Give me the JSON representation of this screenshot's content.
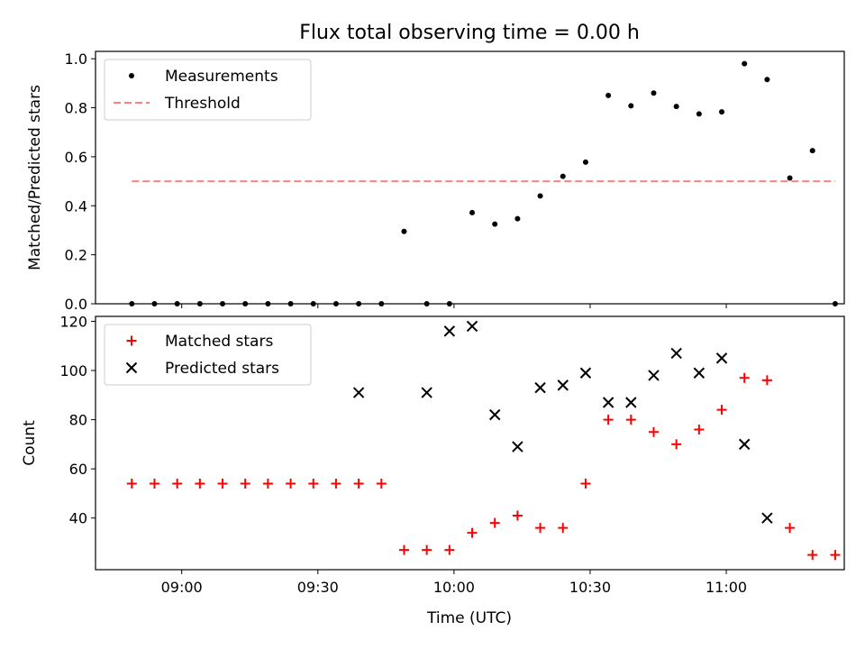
{
  "title": "Flux total observing time = 0.00 h",
  "xlabel": "Time (UTC)",
  "chart_data": [
    {
      "type": "scatter",
      "ylabel": "Matched/Predicted stars",
      "ylim": [
        0,
        1.03
      ],
      "yticks": [
        0.0,
        0.2,
        0.4,
        0.6,
        0.8,
        1.0
      ],
      "ytick_labels": [
        "0.0",
        "0.2",
        "0.4",
        "0.6",
        "0.8",
        "1.0"
      ],
      "xlim": [
        "08:41",
        "11:26"
      ],
      "legend_position": "top-left",
      "series": [
        {
          "name": "Measurements",
          "marker": "dot",
          "color": "#000000",
          "x": [
            "08:49",
            "08:54",
            "08:59",
            "09:04",
            "09:09",
            "09:14",
            "09:19",
            "09:24",
            "09:29",
            "09:34",
            "09:39",
            "09:44",
            "09:49",
            "09:54",
            "09:59",
            "10:04",
            "10:09",
            "10:14",
            "10:19",
            "10:24",
            "10:29",
            "10:34",
            "10:39",
            "10:44",
            "10:49",
            "10:54",
            "10:59",
            "11:04",
            "11:09",
            "11:14",
            "11:19",
            "11:24"
          ],
          "y": [
            0.0,
            0.0,
            0.0,
            0.0,
            0.0,
            0.0,
            0.0,
            0.0,
            0.0,
            0.0,
            0.0,
            0.0,
            0.295,
            0.0,
            0.0,
            0.372,
            0.325,
            0.347,
            0.44,
            0.52,
            0.578,
            0.85,
            0.808,
            0.86,
            0.805,
            0.775,
            0.783,
            0.98,
            0.915,
            0.513,
            0.625,
            0.0
          ]
        },
        {
          "name": "Threshold",
          "style": "dashed",
          "color": "#ff7f7f",
          "x": [
            "08:49",
            "11:24"
          ],
          "y": [
            0.5,
            0.5
          ]
        }
      ]
    },
    {
      "type": "scatter",
      "ylabel": "Count",
      "ylim": [
        19,
        122
      ],
      "yticks": [
        40,
        60,
        80,
        100,
        120
      ],
      "ytick_labels": [
        "40",
        "60",
        "80",
        "100",
        "120"
      ],
      "xlim": [
        "08:41",
        "11:26"
      ],
      "xticks": [
        "09:00",
        "09:30",
        "10:00",
        "10:30",
        "11:00"
      ],
      "xtick_labels": [
        "09:00",
        "09:30",
        "10:00",
        "10:30",
        "11:00"
      ],
      "legend_position": "top-left",
      "series": [
        {
          "name": "Matched stars",
          "marker": "plus",
          "color": "#ff0000",
          "x": [
            "08:49",
            "08:54",
            "08:59",
            "09:04",
            "09:09",
            "09:14",
            "09:19",
            "09:24",
            "09:29",
            "09:34",
            "09:39",
            "09:44",
            "09:49",
            "09:54",
            "09:59",
            "10:04",
            "10:09",
            "10:14",
            "10:19",
            "10:24",
            "10:29",
            "10:34",
            "10:39",
            "10:44",
            "10:49",
            "10:54",
            "10:59",
            "11:04",
            "11:09",
            "11:14",
            "11:19",
            "11:24"
          ],
          "y": [
            54,
            54,
            54,
            54,
            54,
            54,
            54,
            54,
            54,
            54,
            54,
            54,
            27,
            27,
            27,
            34,
            38,
            41,
            36,
            36,
            54,
            80,
            80,
            75,
            70,
            76,
            84,
            97,
            96,
            36,
            25,
            25
          ]
        },
        {
          "name": "Predicted stars",
          "marker": "x",
          "color": "#000000",
          "x": [
            "09:39",
            "09:54",
            "09:59",
            "10:04",
            "10:09",
            "10:14",
            "10:19",
            "10:24",
            "10:29",
            "10:34",
            "10:39",
            "10:44",
            "10:49",
            "10:54",
            "10:59",
            "11:04",
            "11:09"
          ],
          "y": [
            91,
            91,
            116,
            118,
            82,
            69,
            93,
            94,
            99,
            87,
            87,
            98,
            107,
            99,
            105,
            70,
            40
          ]
        }
      ]
    }
  ]
}
